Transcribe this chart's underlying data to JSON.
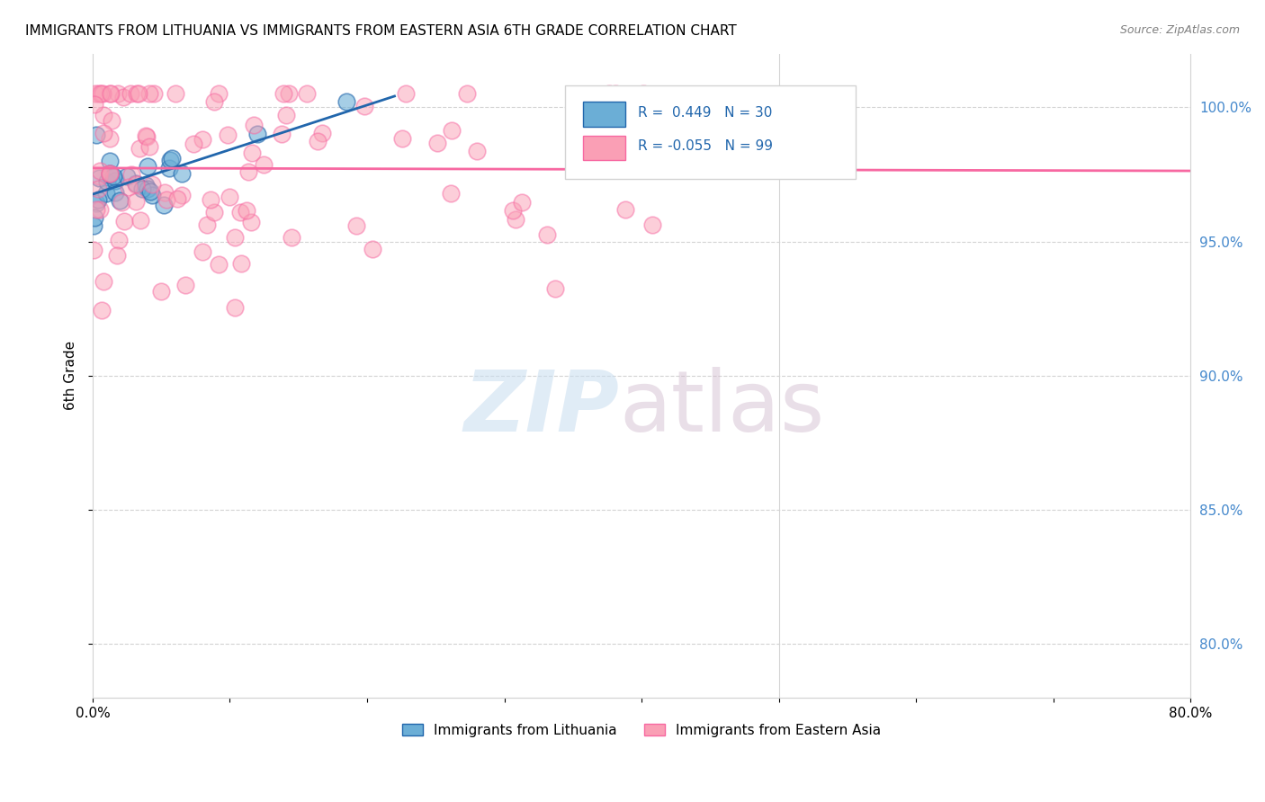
{
  "title": "IMMIGRANTS FROM LITHUANIA VS IMMIGRANTS FROM EASTERN ASIA 6TH GRADE CORRELATION CHART",
  "source": "Source: ZipAtlas.com",
  "ylabel": "6th Grade",
  "ytick_labels": [
    "80.0%",
    "85.0%",
    "90.0%",
    "95.0%",
    "100.0%"
  ],
  "ytick_values": [
    0.8,
    0.85,
    0.9,
    0.95,
    1.0
  ],
  "xlim": [
    0.0,
    0.8
  ],
  "ylim": [
    0.78,
    1.02
  ],
  "legend_R1": "0.449",
  "legend_N1": "30",
  "legend_R2": "-0.055",
  "legend_N2": "99",
  "color_blue": "#6baed6",
  "color_pink": "#fa9fb5",
  "color_blue_line": "#2166ac",
  "color_pink_line": "#f768a1",
  "color_blue_text": "#2166ac",
  "color_right_axis": "#4488cc",
  "background_color": "#ffffff",
  "legend_label_blue": "Immigrants from Lithuania",
  "legend_label_pink": "Immigrants from Eastern Asia"
}
